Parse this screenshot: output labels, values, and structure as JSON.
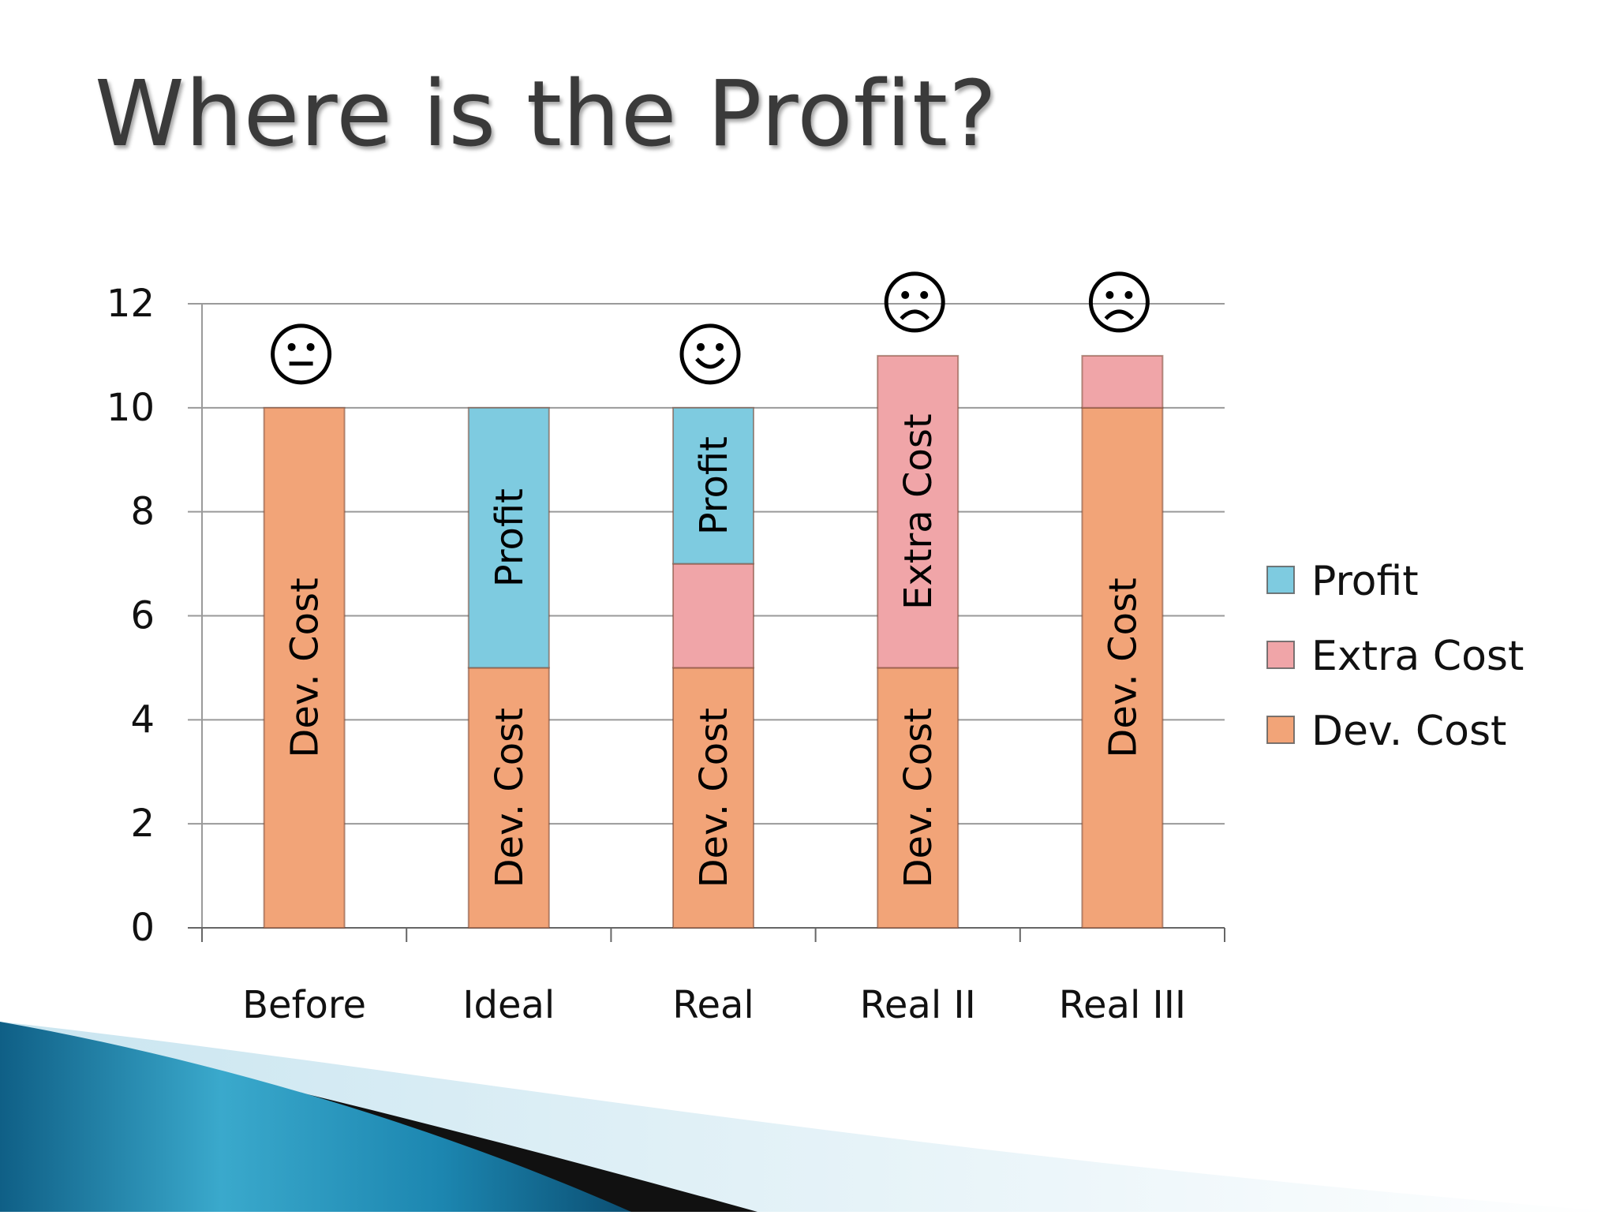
{
  "slide": {
    "title": "Where is the Profit?"
  },
  "colors": {
    "profit": "#7ecbe0",
    "extra_cost": "#f0a5a8",
    "dev_cost": "#f2a478",
    "grid": "#9a9a9a",
    "swoosh_blue": "#1a8fb5",
    "swoosh_dark": "#111111"
  },
  "chart_data": {
    "type": "bar",
    "stacked": true,
    "title": "",
    "xlabel": "",
    "ylabel": "",
    "ylim": [
      0,
      12
    ],
    "yticks": [
      "0",
      "2",
      "4",
      "6",
      "8",
      "10",
      "12"
    ],
    "grid": true,
    "legend_position": "right",
    "categories": [
      "Before",
      "Ideal",
      "Real",
      "Real II",
      "Real III"
    ],
    "series": [
      {
        "name": "Dev. Cost",
        "color_key": "dev_cost",
        "values": [
          10,
          5,
          5,
          5,
          10
        ]
      },
      {
        "name": "Extra Cost",
        "color_key": "extra_cost",
        "values": [
          0,
          0,
          2,
          6,
          1
        ]
      },
      {
        "name": "Profit",
        "color_key": "profit",
        "values": [
          0,
          5,
          3,
          0,
          0
        ]
      }
    ],
    "legend_order": [
      "Profit",
      "Extra Cost",
      "Dev. Cost"
    ],
    "segment_labels": [
      {
        "category": "Before",
        "series": "Dev. Cost",
        "text": "Dev. Cost"
      },
      {
        "category": "Ideal",
        "series": "Profit",
        "text": "Profit"
      },
      {
        "category": "Ideal",
        "series": "Dev. Cost",
        "text": "Dev. Cost"
      },
      {
        "category": "Real",
        "series": "Profit",
        "text": "Profit"
      },
      {
        "category": "Real",
        "series": "Dev. Cost",
        "text": "Dev. Cost"
      },
      {
        "category": "Real II",
        "series": "Extra Cost",
        "text": "Extra Cost"
      },
      {
        "category": "Real II",
        "series": "Dev. Cost",
        "text": "Dev. Cost"
      },
      {
        "category": "Real III",
        "series": "Dev. Cost",
        "text": "Dev. Cost"
      }
    ],
    "annotations": [
      {
        "category": "Before",
        "icon": "neutral-face-icon"
      },
      {
        "category": "Real",
        "icon": "smiley-face-icon"
      },
      {
        "category": "Real II",
        "icon": "frowning-face-icon"
      },
      {
        "category": "Real III",
        "icon": "frowning-face-icon"
      }
    ]
  }
}
